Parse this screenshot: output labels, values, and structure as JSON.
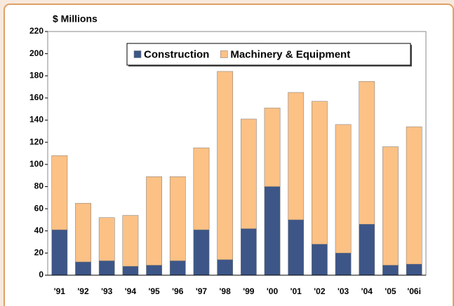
{
  "chart_data": {
    "type": "stacked-bar",
    "y_label": "$ Millions",
    "categories": [
      "'91",
      "'92",
      "'93",
      "'94",
      "'95",
      "'96",
      "'97",
      "'98",
      "'99",
      "'00",
      "'01",
      "'02",
      "'03",
      "'04",
      "'05",
      "'06i"
    ],
    "series": [
      {
        "name": "Construction",
        "color": "#3d5687",
        "values": [
          41,
          12,
          13,
          8,
          9,
          13,
          41,
          14,
          42,
          80,
          50,
          28,
          20,
          46,
          9,
          10
        ]
      },
      {
        "name": "Machinery & Equipment",
        "color": "#fcc185",
        "values": [
          67,
          53,
          39,
          46,
          80,
          76,
          74,
          170,
          99,
          71,
          115,
          129,
          116,
          129,
          107,
          124
        ]
      }
    ],
    "ylim": [
      0,
      220
    ],
    "yticks": [
      0,
      20,
      40,
      60,
      80,
      100,
      120,
      140,
      160,
      180,
      200,
      220
    ],
    "legend": "top-right"
  }
}
